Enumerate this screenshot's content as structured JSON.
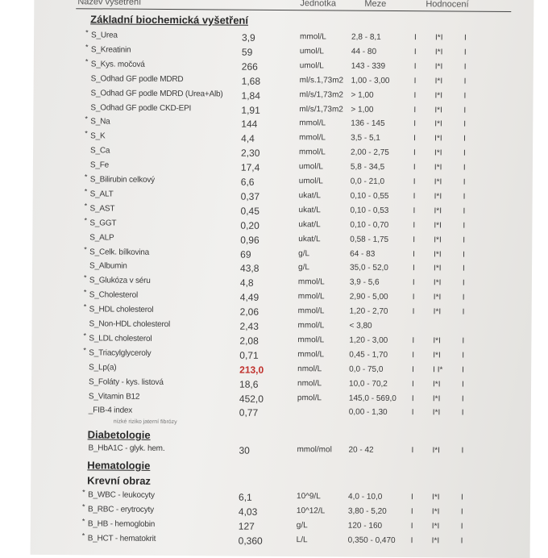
{
  "header": {
    "col_name": "Název vyšetření",
    "col_unit": "Jednotka",
    "col_range": "Meze",
    "col_eval": "Hodnocení"
  },
  "sections": {
    "biochem": "Základní biochemická vyšetření",
    "diabet": "Diabetologie",
    "hemat": "Hematologie",
    "krevni": "Krevní obraz"
  },
  "fib_note": "nízké riziko jaterní fibrózy",
  "colors": {
    "abnormal": "#c0302c"
  },
  "biochem_rows": [
    {
      "star": true,
      "name": "S_Urea",
      "value": "3,9",
      "unit": "mmol/L",
      "range": "2,8 - 8,1",
      "flag": "I*I"
    },
    {
      "star": true,
      "name": "S_Kreatinin",
      "value": "59",
      "unit": "umol/L",
      "range": "44 - 80",
      "flag": "I*I"
    },
    {
      "star": true,
      "name": "S_Kys. močová",
      "value": "266",
      "unit": "umol/L",
      "range": "143 - 339",
      "flag": "I*I"
    },
    {
      "star": false,
      "name": "S_Odhad GF podle MDRD",
      "value": "1,68",
      "unit": "ml/s.1,73m2",
      "range": "1,00 - 3,00",
      "flag": "I*I"
    },
    {
      "star": false,
      "name": "S_Odhad GF podle MDRD (Urea+Alb)",
      "value": "1,84",
      "unit": "ml/s/1,73m2",
      "range": "> 1,00",
      "flag": "I*I"
    },
    {
      "star": false,
      "name": "S_Odhad GF podle CKD-EPI",
      "value": "1,91",
      "unit": "ml/s/1,73m2",
      "range": "> 1,00",
      "flag": "I*I"
    },
    {
      "star": true,
      "name": "S_Na",
      "value": "144",
      "unit": "mmol/L",
      "range": "136 - 145",
      "flag": "I*I"
    },
    {
      "star": true,
      "name": "S_K",
      "value": "4,4",
      "unit": "mmol/L",
      "range": "3,5 - 5,1",
      "flag": "I*I"
    },
    {
      "star": false,
      "name": "S_Ca",
      "value": "2,30",
      "unit": "mmol/L",
      "range": "2,00 - 2,75",
      "flag": "I*I"
    },
    {
      "star": false,
      "name": "S_Fe",
      "value": "17,4",
      "unit": "umol/L",
      "range": "5,8 - 34,5",
      "flag": "I*I"
    },
    {
      "star": true,
      "name": "S_Bilirubin celkový",
      "value": "6,6",
      "unit": "umol/L",
      "range": "0,0 - 21,0",
      "flag": "I*I"
    },
    {
      "star": true,
      "name": "S_ALT",
      "value": "0,37",
      "unit": "ukat/L",
      "range": "0,10 - 0,55",
      "flag": "I*I"
    },
    {
      "star": true,
      "name": "S_AST",
      "value": "0,45",
      "unit": "ukat/L",
      "range": "0,10 - 0,53",
      "flag": "I*I"
    },
    {
      "star": true,
      "name": "S_GGT",
      "value": "0,20",
      "unit": "ukat/L",
      "range": "0,10 - 0,70",
      "flag": "I*I"
    },
    {
      "star": false,
      "name": "S_ALP",
      "value": "0,96",
      "unit": "ukat/L",
      "range": "0,58 - 1,75",
      "flag": "I*I"
    },
    {
      "star": true,
      "name": "S_Celk. bílkovina",
      "value": "69",
      "unit": "g/L",
      "range": "64 - 83",
      "flag": "I*I"
    },
    {
      "star": false,
      "name": "S_Albumin",
      "value": "43,8",
      "unit": "g/L",
      "range": "35,0 - 52,0",
      "flag": "I*I"
    },
    {
      "star": true,
      "name": "S_Glukóza v séru",
      "value": "4,8",
      "unit": "mmol/L",
      "range": "3,9 - 5,6",
      "flag": "I*I"
    },
    {
      "star": true,
      "name": "S_Cholesterol",
      "value": "4,49",
      "unit": "mmol/L",
      "range": "2,90 - 5,00",
      "flag": "I*I"
    },
    {
      "star": true,
      "name": "S_HDL cholesterol",
      "value": "2,06",
      "unit": "mmol/L",
      "range": "1,20 - 2,70",
      "flag": "I*I"
    },
    {
      "star": false,
      "name": "S_Non-HDL cholesterol",
      "value": "2,43",
      "unit": "mmol/L",
      "range": "< 3,80",
      "flag": ""
    },
    {
      "star": true,
      "name": "S_LDL cholesterol",
      "value": "2,08",
      "unit": "mmol/L",
      "range": "1,20 - 3,00",
      "flag": "I*I"
    },
    {
      "star": true,
      "name": "S_Triacylglyceroly",
      "value": "0,71",
      "unit": "mmol/L",
      "range": "0,45 - 1,70",
      "flag": "I*I"
    },
    {
      "star": false,
      "name": "S_Lp(a)",
      "value": "213,0",
      "unit": "nmol/L",
      "range": "0,0 - 75,0",
      "flag": "I I*",
      "abnormal": true
    },
    {
      "star": false,
      "name": "S_Foláty - kys. listová",
      "value": "18,6",
      "unit": "nmol/L",
      "range": "10,0 - 70,2",
      "flag": "I*I"
    },
    {
      "star": false,
      "name": "S_Vitamin B12",
      "value": "452,0",
      "unit": "pmol/L",
      "range": "145,0 - 569,0",
      "flag": "I*I"
    },
    {
      "star": false,
      "name": "_FIB-4 index",
      "value": "0,77",
      "unit": "",
      "range": "0,00 - 1,30",
      "flag": "I*I"
    }
  ],
  "diabet_rows": [
    {
      "star": false,
      "name": "B_HbA1C - glyk. hem.",
      "value": "30",
      "unit": "mmol/mol",
      "range": "20 - 42",
      "flag": "I*I"
    }
  ],
  "hemat_rows": [
    {
      "star": true,
      "name": "B_WBC - leukocyty",
      "value": "6,1",
      "unit": "10^9/L",
      "range": "4,0 - 10,0",
      "flag": "I*I"
    },
    {
      "star": true,
      "name": "B_RBC - erytrocyty",
      "value": "4,03",
      "unit": "10^12/L",
      "range": "3,80 - 5,20",
      "flag": "I*I"
    },
    {
      "star": true,
      "name": "B_HB - hemoglobin",
      "value": "127",
      "unit": "g/L",
      "range": "120 - 160",
      "flag": "I*I"
    },
    {
      "star": true,
      "name": "B_HCT - hematokrit",
      "value": "0,360",
      "unit": "L/L",
      "range": "0,350 - 0,470",
      "flag": "I*I"
    }
  ]
}
